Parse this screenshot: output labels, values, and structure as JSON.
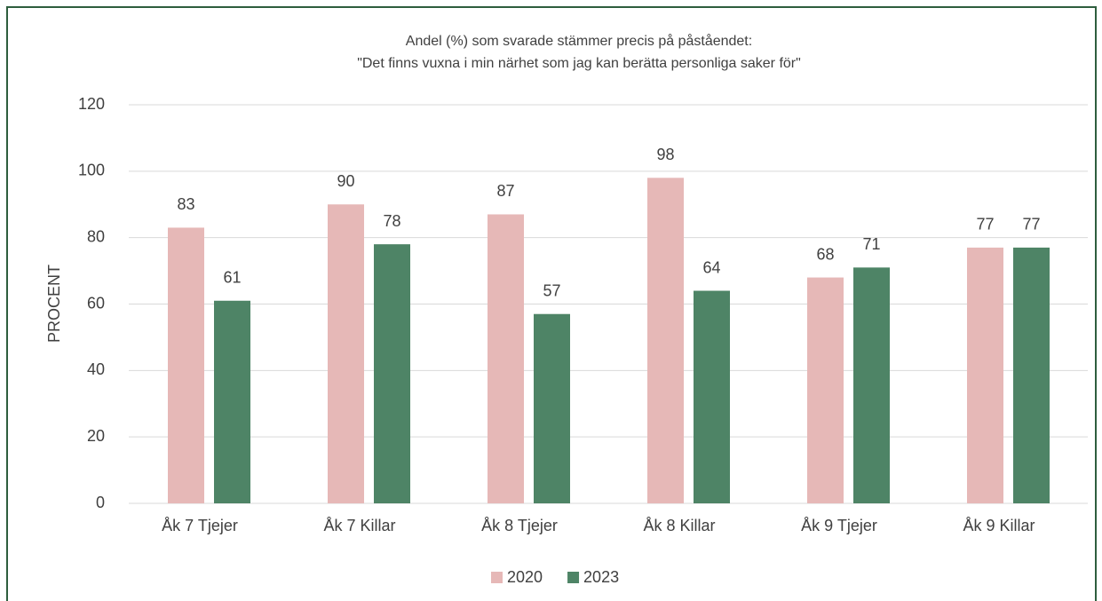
{
  "chart_data": {
    "type": "bar",
    "title": [
      "Andel (%) som svarade stämmer precis på påståendet:",
      "\"Det finns vuxna i min närhet som jag kan berätta personliga saker för\""
    ],
    "y_label": "PROCENT",
    "categories": [
      "Åk 7 Tjejer",
      "Åk 7 Killar",
      "Åk 8 Tjejer",
      "Åk 8 Killar",
      "Åk 9 Tjejer",
      "Åk 9 Killar"
    ],
    "series": [
      {
        "name": "2020",
        "color": "#e6b8b7",
        "values": [
          83,
          90,
          87,
          98,
          68,
          77
        ]
      },
      {
        "name": "2023",
        "color": "#4e8466",
        "values": [
          61,
          78,
          57,
          64,
          71,
          77
        ]
      }
    ],
    "ylim": [
      0,
      120
    ],
    "yticks": [
      0,
      20,
      40,
      60,
      80,
      100,
      120
    ],
    "grid": true,
    "legend": "bottom"
  }
}
